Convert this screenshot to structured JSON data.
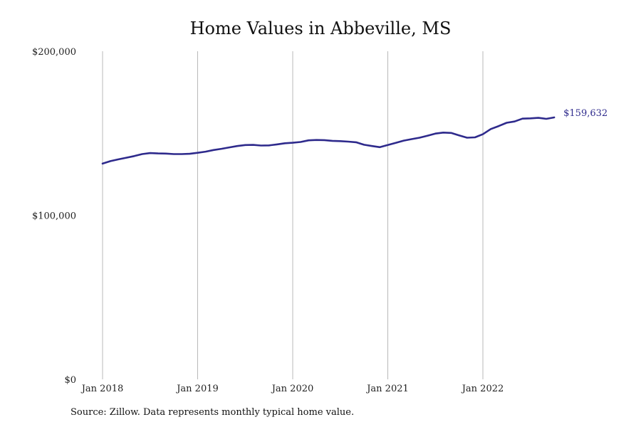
{
  "chart_data": {
    "type": "line",
    "title": "Home Values in Abbeville, MS",
    "source_note": "Source: Zillow. Data represents monthly typical home value.",
    "xlabel": "",
    "ylabel": "",
    "ylim": [
      0,
      200000
    ],
    "y_ticks": [
      {
        "value": 0,
        "label": "$0"
      },
      {
        "value": 100000,
        "label": "$100,000"
      },
      {
        "value": 200000,
        "label": "$200,000"
      }
    ],
    "x_ticks": [
      {
        "date": "2018-01",
        "label": "Jan 2018"
      },
      {
        "date": "2019-01",
        "label": "Jan 2019"
      },
      {
        "date": "2020-01",
        "label": "Jan 2020"
      },
      {
        "date": "2021-01",
        "label": "Jan 2021"
      },
      {
        "date": "2022-01",
        "label": "Jan 2022"
      }
    ],
    "grid": "vertical-at-x-ticks",
    "line_color": "#2e2a8c",
    "last_value_label": "$159,632",
    "series": [
      {
        "x": [
          "2018-01",
          "2018-02",
          "2018-03",
          "2018-04",
          "2018-05",
          "2018-06",
          "2018-07",
          "2018-08",
          "2018-09",
          "2018-10",
          "2018-11",
          "2018-12",
          "2019-01",
          "2019-02",
          "2019-03",
          "2019-04",
          "2019-05",
          "2019-06",
          "2019-07",
          "2019-08",
          "2019-09",
          "2019-10",
          "2019-11",
          "2019-12",
          "2020-01",
          "2020-02",
          "2020-03",
          "2020-04",
          "2020-05",
          "2020-06",
          "2020-07",
          "2020-08",
          "2020-09",
          "2020-10",
          "2020-11",
          "2020-12",
          "2021-01",
          "2021-02",
          "2021-03",
          "2021-04",
          "2021-05",
          "2021-06",
          "2021-07",
          "2021-08",
          "2021-09",
          "2021-10",
          "2021-11",
          "2021-12",
          "2022-01",
          "2022-02",
          "2022-03",
          "2022-04",
          "2022-05",
          "2022-06",
          "2022-07",
          "2022-08",
          "2022-09",
          "2022-10"
        ],
        "values": [
          131500,
          133000,
          134100,
          135100,
          136100,
          137300,
          137900,
          137700,
          137600,
          137300,
          137300,
          137500,
          138100,
          138800,
          139800,
          140500,
          141400,
          142200,
          142800,
          142900,
          142500,
          142600,
          143200,
          143900,
          144200,
          144700,
          145700,
          145900,
          145800,
          145400,
          145200,
          144900,
          144500,
          143000,
          142200,
          141500,
          142800,
          144100,
          145500,
          146400,
          147300,
          148500,
          149800,
          150400,
          150200,
          148700,
          147300,
          147500,
          149400,
          152600,
          154400,
          156400,
          157200,
          158900,
          159100,
          159400,
          158800,
          159632
        ]
      }
    ]
  }
}
